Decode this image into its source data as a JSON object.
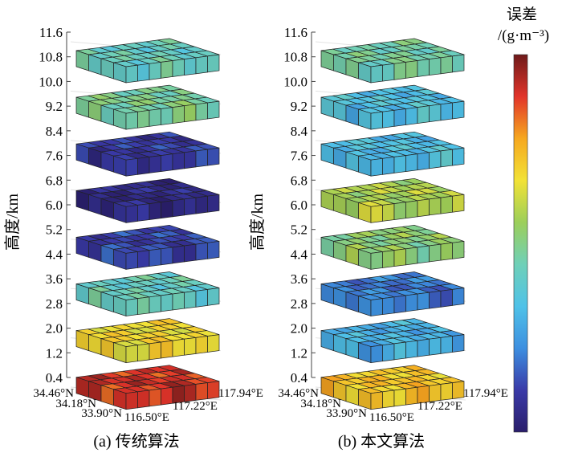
{
  "chart_data": {
    "type": "heatmap",
    "ylabel": "高度/km",
    "yticks": [
      "11.6",
      "10.8",
      "10.0",
      "9.2",
      "8.4",
      "7.6",
      "6.8",
      "6.0",
      "5.2",
      "4.4",
      "3.6",
      "2.8",
      "2.0",
      "1.2",
      "0.4"
    ],
    "lat_ticks": [
      "34.46°N",
      "34.18°N",
      "33.90°N"
    ],
    "lon_ticks": [
      "116.50°E",
      "117.22°E",
      "117.94°E"
    ],
    "colorbar": {
      "title": "误差",
      "unit": "/(g·m⁻³)",
      "colors": [
        "#2a1e6b",
        "#3a3aa8",
        "#3d8fe0",
        "#4fc2e8",
        "#6fd0b8",
        "#9ccf5a",
        "#f2e236",
        "#f6a81f",
        "#e2342a",
        "#6e1a1a"
      ]
    },
    "panels": [
      {
        "caption": "(a) 传统算法",
        "layers_bottom_to_top_normalized_error": [
          0.9,
          0.68,
          0.42,
          0.12,
          0.05,
          0.1,
          0.48,
          0.42
        ]
      },
      {
        "caption": "(b) 本文算法",
        "layers_bottom_to_top_normalized_error": [
          0.72,
          0.3,
          0.2,
          0.52,
          0.58,
          0.33,
          0.34,
          0.46
        ]
      }
    ]
  }
}
